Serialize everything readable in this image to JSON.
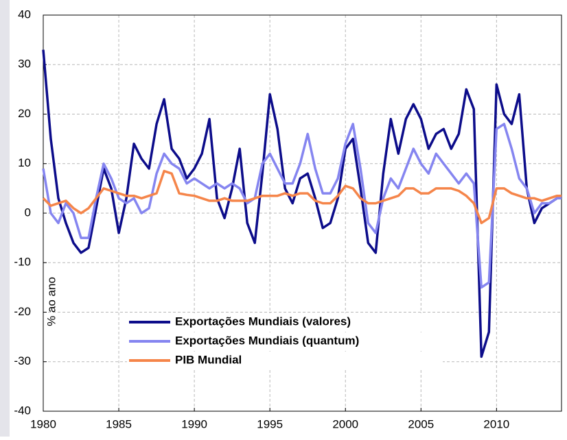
{
  "chart_data": {
    "type": "line",
    "ylabel": "% ao ano",
    "x": [
      1980,
      1980.5,
      1981,
      1981.5,
      1982,
      1982.5,
      1983,
      1983.5,
      1984,
      1984.5,
      1985,
      1985.5,
      1986,
      1986.5,
      1987,
      1987.5,
      1988,
      1988.5,
      1989,
      1989.5,
      1990,
      1990.5,
      1991,
      1991.5,
      1992,
      1992.5,
      1993,
      1993.5,
      1994,
      1994.5,
      1995,
      1995.5,
      1996,
      1996.5,
      1997,
      1997.5,
      1998,
      1998.5,
      1999,
      1999.5,
      2000,
      2000.5,
      2001,
      2001.5,
      2002,
      2002.5,
      2003,
      2003.5,
      2004,
      2004.5,
      2005,
      2005.5,
      2006,
      2006.5,
      2007,
      2007.5,
      2008,
      2008.5,
      2009,
      2009.5,
      2010,
      2010.5,
      2011,
      2011.5,
      2012,
      2012.5,
      2013,
      2013.5,
      2014,
      2014.3
    ],
    "series": [
      {
        "name": "Exportações Mundiais (valores)",
        "color": "#0c0c8a",
        "values": [
          33,
          15,
          3,
          -2,
          -6,
          -8,
          -7,
          1,
          9,
          5,
          -4,
          3,
          14,
          11,
          9,
          18,
          23,
          13,
          11,
          7,
          9,
          12,
          19,
          3,
          -1,
          5,
          13,
          -2,
          -6,
          8,
          24,
          17,
          5,
          2,
          7,
          8,
          3,
          -3,
          -2,
          3,
          13,
          15,
          5,
          -6,
          -8,
          8,
          19,
          12,
          19,
          22,
          19,
          13,
          16,
          17,
          13,
          16,
          25,
          21,
          -29,
          -24,
          26,
          20,
          18,
          24,
          5,
          -2,
          1,
          2,
          3,
          3.5
        ]
      },
      {
        "name": "Exportações Mundiais (quantum)",
        "color": "#8585f0",
        "values": [
          9,
          0,
          -2,
          2,
          0,
          -5,
          -5,
          3,
          10,
          7,
          3,
          2,
          3,
          0,
          1,
          8,
          12,
          10,
          9,
          6,
          7,
          6,
          5,
          6,
          5,
          6,
          5,
          2,
          3,
          10,
          12,
          9,
          6,
          6,
          10,
          16,
          9,
          4,
          4,
          7,
          14,
          18,
          9,
          -2,
          -4,
          3,
          7,
          5,
          9,
          13,
          10,
          8,
          12,
          10,
          8,
          6,
          8,
          6,
          -15,
          -14,
          17,
          18,
          13,
          7,
          5,
          0,
          2,
          2,
          3,
          3
        ]
      },
      {
        "name": "PIB Mundial",
        "color": "#f5854a",
        "values": [
          3,
          1.5,
          2,
          2.5,
          1,
          0,
          1,
          3,
          5,
          4.5,
          4,
          3.5,
          3.5,
          3,
          3.5,
          4,
          8.5,
          8,
          4,
          3.7,
          3.5,
          3,
          2.5,
          2.5,
          3,
          2.5,
          2.5,
          2.5,
          3,
          3.5,
          3.5,
          3.5,
          4,
          3.5,
          4,
          4,
          2.5,
          2,
          2,
          3.5,
          5.5,
          5,
          3,
          2,
          2,
          2.5,
          3,
          3.5,
          5,
          5,
          4,
          4,
          5,
          5,
          5,
          4.5,
          3.5,
          2,
          -2,
          -1,
          5,
          5,
          4,
          3.5,
          3,
          3,
          2.5,
          3,
          3.5,
          3.5
        ]
      }
    ],
    "xlim": [
      1980,
      2014.3
    ],
    "xticks": [
      1980,
      1985,
      1990,
      1995,
      2000,
      2005,
      2010
    ],
    "ylim": [
      -40,
      40
    ],
    "yticks": [
      -40,
      -30,
      -20,
      -10,
      0,
      10,
      20,
      30,
      40
    ],
    "grid": true
  }
}
